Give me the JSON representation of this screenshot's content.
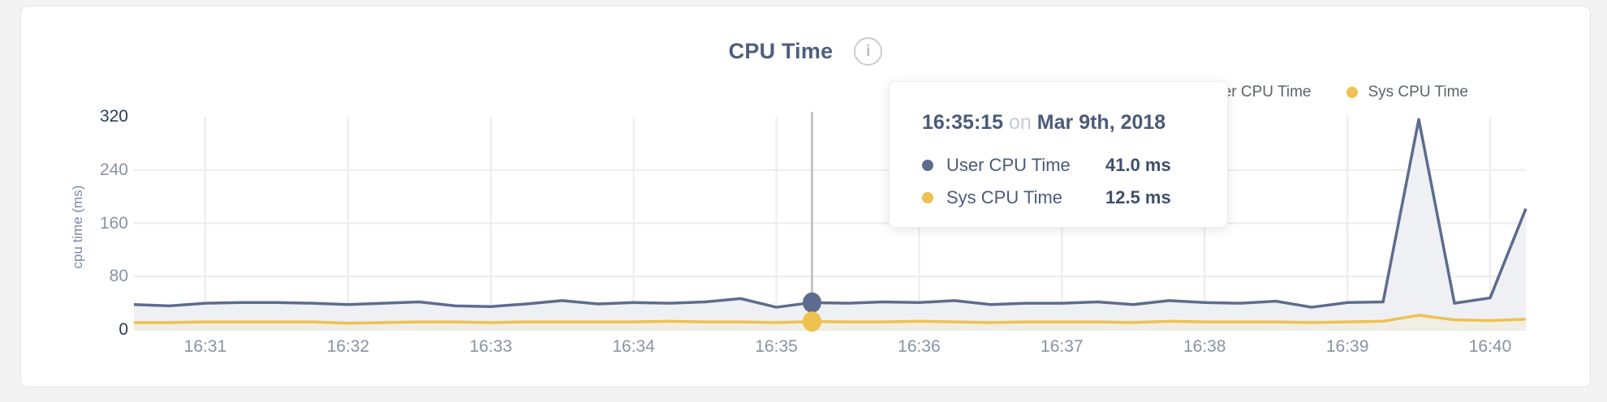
{
  "card": {
    "title": "CPU Time",
    "info_icon_glyph": "i"
  },
  "legend": [
    {
      "label": "User CPU Time",
      "color": "#5d6c8e"
    },
    {
      "label": "Sys CPU Time",
      "color": "#eec150"
    }
  ],
  "tooltip": {
    "time": "16:35:15",
    "connector": "on",
    "date": "Mar 9th, 2018",
    "rows": [
      {
        "label": "User CPU Time",
        "value": "41.0 ms",
        "color": "#5d6c8e"
      },
      {
        "label": "Sys CPU Time",
        "value": "12.5 ms",
        "color": "#eec150"
      }
    ]
  },
  "chart_data": {
    "type": "area",
    "title": "CPU Time",
    "ylabel": "cpu time (ms)",
    "xlabel": "",
    "ylim": [
      0,
      320
    ],
    "y_ticks": [
      0,
      80,
      160,
      240,
      320
    ],
    "y_ticks_dark": [
      0,
      320
    ],
    "x_ticks": [
      "16:31",
      "16:32",
      "16:33",
      "16:34",
      "16:35",
      "16:36",
      "16:37",
      "16:38",
      "16:39",
      "16:40"
    ],
    "x_start": "16:30:30",
    "x_end": "16:40:15",
    "sample_interval_s": 15,
    "grid": true,
    "legend_position": "top-right",
    "times": [
      "16:30:30",
      "16:30:45",
      "16:31:00",
      "16:31:15",
      "16:31:30",
      "16:31:45",
      "16:32:00",
      "16:32:15",
      "16:32:30",
      "16:32:45",
      "16:33:00",
      "16:33:15",
      "16:33:30",
      "16:33:45",
      "16:34:00",
      "16:34:15",
      "16:34:30",
      "16:34:45",
      "16:35:00",
      "16:35:15",
      "16:35:30",
      "16:35:45",
      "16:36:00",
      "16:36:15",
      "16:36:30",
      "16:36:45",
      "16:37:00",
      "16:37:15",
      "16:37:30",
      "16:37:45",
      "16:38:00",
      "16:38:15",
      "16:38:30",
      "16:38:45",
      "16:39:00",
      "16:39:15",
      "16:39:30",
      "16:39:45",
      "16:40:00",
      "16:40:15"
    ],
    "series": [
      {
        "name": "User CPU Time",
        "color": "#5d6c8e",
        "fill": "#eef0f4",
        "values": [
          38,
          36,
          40,
          41,
          41,
          40,
          38,
          40,
          42,
          36,
          35,
          39,
          44,
          39,
          41,
          40,
          42,
          47,
          34,
          41,
          40,
          42,
          41,
          44,
          38,
          40,
          40,
          42,
          38,
          44,
          41,
          40,
          43,
          34,
          41,
          42,
          316,
          40,
          48,
          182
        ]
      },
      {
        "name": "Sys CPU Time",
        "color": "#eec150",
        "fill": "#f1eee3",
        "values": [
          11,
          11,
          12,
          12,
          12,
          12,
          10,
          11,
          12,
          12,
          11,
          12,
          12,
          12,
          12,
          13,
          12,
          12,
          11,
          12.5,
          12,
          12,
          13,
          12,
          11,
          12,
          12,
          12,
          11,
          13,
          12,
          12,
          12,
          11,
          12,
          13,
          22,
          15,
          14,
          16
        ]
      }
    ],
    "highlight": {
      "index": 19,
      "time": "16:35:15",
      "date": "Mar 9th, 2018",
      "user_ms": 41.0,
      "sys_ms": 12.5
    },
    "colors": {
      "grid": "#ececec",
      "baseline": "#e9e9ea",
      "crosshair": "#b9babc",
      "tick_light": "#8893a4",
      "tick_dark": "#2c3c58"
    }
  }
}
